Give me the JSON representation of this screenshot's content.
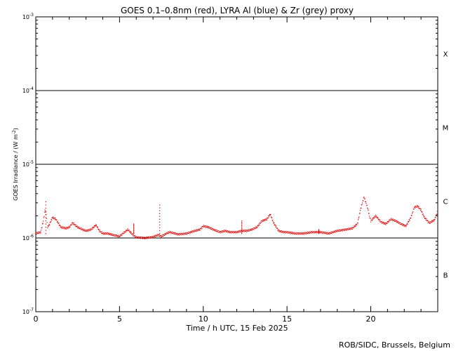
{
  "chart_data": {
    "type": "scatter",
    "title": "GOES 0.1–0.8nm (red), LYRA Al (blue) & Zr (grey) proxy",
    "xlabel": "Time / h UTC, 15 Feb 2025",
    "ylabel": "GOES Irradiance / (W m",
    "ylabel_sup": "-2",
    "ylabel_close": ")",
    "xlim": [
      0,
      24
    ],
    "ylim_exponent": [
      -7,
      -3
    ],
    "yscale": "log",
    "x_ticks": [
      {
        "value": 0,
        "label": "0"
      },
      {
        "value": 5,
        "label": "5"
      },
      {
        "value": 10,
        "label": "10"
      },
      {
        "value": 15,
        "label": "15"
      },
      {
        "value": 20,
        "label": "20"
      }
    ],
    "y_ticks": [
      {
        "exp": -7,
        "base": "10",
        "sup": "-7"
      },
      {
        "exp": -6,
        "base": "10",
        "sup": "-6"
      },
      {
        "exp": -5,
        "base": "10",
        "sup": "-5"
      },
      {
        "exp": -4,
        "base": "10",
        "sup": "-4"
      },
      {
        "exp": -3,
        "base": "10",
        "sup": "-3"
      }
    ],
    "class_lines_exp": [
      -6,
      -5,
      -4
    ],
    "flare_classes": [
      {
        "label": "X",
        "center_exp": -3.5
      },
      {
        "label": "M",
        "center_exp": -4.5
      },
      {
        "label": "C",
        "center_exp": -5.5
      },
      {
        "label": "B",
        "center_exp": -6.5
      }
    ],
    "series": [
      {
        "color": "#e00000",
        "x": [
          0.0,
          0.3,
          0.45,
          0.55,
          0.62,
          0.7,
          0.8,
          1.0,
          1.2,
          1.5,
          1.8,
          2.0,
          2.2,
          2.5,
          2.8,
          3.0,
          3.3,
          3.6,
          3.8,
          4.0,
          4.3,
          4.6,
          5.0,
          5.2,
          5.5,
          5.8,
          6.0,
          6.5,
          7.0,
          7.3,
          7.5,
          7.8,
          8.0,
          8.5,
          9.0,
          9.5,
          9.8,
          10.0,
          10.3,
          10.6,
          11.0,
          11.3,
          11.6,
          12.0,
          12.3,
          12.6,
          12.9,
          13.2,
          13.5,
          13.8,
          14.0,
          14.2,
          14.5,
          14.8,
          15.0,
          15.5,
          16.0,
          16.5,
          17.0,
          17.5,
          18.0,
          18.5,
          18.9,
          19.2,
          19.4,
          19.6,
          19.8,
          20.0,
          20.3,
          20.6,
          20.9,
          21.2,
          21.5,
          21.8,
          22.1,
          22.4,
          22.6,
          22.8,
          23.0,
          23.2,
          23.5,
          23.8,
          24.0
        ],
        "y": [
          1.15e-06,
          1.2e-06,
          1.7e-06,
          2.4e-06,
          2.1e-06,
          1.4e-06,
          1.5e-06,
          1.9e-06,
          1.8e-06,
          1.4e-06,
          1.35e-06,
          1.4e-06,
          1.6e-06,
          1.4e-06,
          1.3e-06,
          1.25e-06,
          1.3e-06,
          1.5e-06,
          1.25e-06,
          1.15e-06,
          1.15e-06,
          1.1e-06,
          1.05e-06,
          1.15e-06,
          1.3e-06,
          1.1e-06,
          1.02e-06,
          1e-06,
          1.03e-06,
          1.1e-06,
          1.05e-06,
          1.15e-06,
          1.2e-06,
          1.12e-06,
          1.15e-06,
          1.25e-06,
          1.3e-06,
          1.45e-06,
          1.4e-06,
          1.3e-06,
          1.2e-06,
          1.25e-06,
          1.2e-06,
          1.2e-06,
          1.25e-06,
          1.25e-06,
          1.3e-06,
          1.4e-06,
          1.7e-06,
          1.8e-06,
          2.1e-06,
          1.6e-06,
          1.25e-06,
          1.2e-06,
          1.2e-06,
          1.15e-06,
          1.15e-06,
          1.2e-06,
          1.2e-06,
          1.15e-06,
          1.25e-06,
          1.3e-06,
          1.35e-06,
          1.55e-06,
          2.5e-06,
          3.6e-06,
          2.6e-06,
          1.7e-06,
          2e-06,
          1.65e-06,
          1.55e-06,
          1.8e-06,
          1.7e-06,
          1.55e-06,
          1.45e-06,
          1.9e-06,
          2.6e-06,
          2.7e-06,
          2.4e-06,
          1.9e-06,
          1.6e-06,
          1.75e-06,
          2.3e-06
        ]
      }
    ],
    "spikes": [
      {
        "x": 0.6,
        "y": 3.1e-06
      },
      {
        "x": 5.85,
        "y": 1.55e-06
      },
      {
        "x": 7.4,
        "y": 2.8e-06
      },
      {
        "x": 12.3,
        "y": 1.7e-06
      },
      {
        "x": 16.9,
        "y": 1.3e-06
      }
    ],
    "footer": "ROB/SIDC, Brussels, Belgium"
  }
}
